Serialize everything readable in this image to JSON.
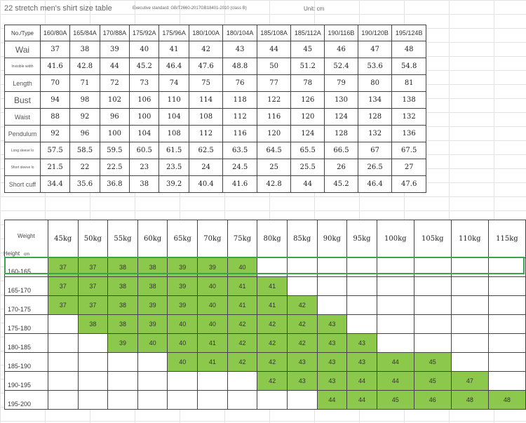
{
  "header": {
    "title": "22 stretch men's shirt size table",
    "standard": "Executive standard: GB/T2660-2017GB18401-2010 (class B)",
    "unit": "Unit: cm"
  },
  "size_table": {
    "corner": "No./Type",
    "columns": [
      "160/80A",
      "165/84A",
      "170/88A",
      "175/92A",
      "175/96A",
      "180/100A",
      "180/104A",
      "185/108A",
      "185/112A",
      "190/116B",
      "190/120B",
      "195/124B"
    ],
    "rows": [
      {
        "label": "Wai",
        "values": [
          "37",
          "38",
          "39",
          "40",
          "41",
          "42",
          "43",
          "44",
          "45",
          "46",
          "47",
          "48"
        ]
      },
      {
        "label": "Invisible width",
        "values": [
          "41.6",
          "42.8",
          "44",
          "45.2",
          "46.4",
          "47.6",
          "48.8",
          "50",
          "51.2",
          "52.4",
          "53.6",
          "54.8"
        ]
      },
      {
        "label": "Length",
        "values": [
          "70",
          "71",
          "72",
          "73",
          "74",
          "75",
          "76",
          "77",
          "78",
          "79",
          "80",
          "81"
        ]
      },
      {
        "label": "Bust",
        "values": [
          "94",
          "98",
          "102",
          "106",
          "110",
          "114",
          "118",
          "122",
          "126",
          "130",
          "134",
          "138"
        ]
      },
      {
        "label": "Waist",
        "values": [
          "88",
          "92",
          "96",
          "100",
          "104",
          "108",
          "112",
          "116",
          "120",
          "124",
          "128",
          "132"
        ]
      },
      {
        "label": "Pendulum",
        "values": [
          "92",
          "96",
          "100",
          "104",
          "108",
          "112",
          "116",
          "120",
          "124",
          "128",
          "132",
          "136"
        ]
      },
      {
        "label": "Long sleeve lo",
        "values": [
          "57.5",
          "58.5",
          "59.5",
          "60.5",
          "61.5",
          "62.5",
          "63.5",
          "64.5",
          "65.5",
          "66.5",
          "67",
          "67.5"
        ]
      },
      {
        "label": "Short sleeve lo",
        "values": [
          "21.5",
          "22",
          "22.5",
          "23",
          "23.5",
          "24",
          "24.5",
          "25",
          "25.5",
          "26",
          "26.5",
          "27"
        ]
      },
      {
        "label": "Short cuff",
        "values": [
          "34.4",
          "35.6",
          "36.8",
          "38",
          "39.2",
          "40.4",
          "41.6",
          "42.8",
          "44",
          "45.2",
          "46.4",
          "47.6"
        ]
      }
    ]
  },
  "fit_table": {
    "weight_label": "Weight",
    "height_label": "Height",
    "height_unit": "cm",
    "weights": [
      "45kg",
      "50kg",
      "55kg",
      "60kg",
      "65kg",
      "70kg",
      "75kg",
      "80kg",
      "85kg",
      "90kg",
      "95kg",
      "100kg",
      "105kg",
      "110kg",
      "115kg"
    ],
    "rows": [
      {
        "height": "160-165",
        "cells": [
          "37",
          "37",
          "38",
          "38",
          "39",
          "39",
          "40",
          "",
          "",
          "",
          "",
          "",
          "",
          "",
          ""
        ]
      },
      {
        "height": "165-170",
        "cells": [
          "37",
          "37",
          "38",
          "38",
          "39",
          "40",
          "41",
          "41",
          "",
          "",
          "",
          "",
          "",
          "",
          ""
        ]
      },
      {
        "height": "170-175",
        "cells": [
          "37",
          "37",
          "38",
          "39",
          "39",
          "40",
          "41",
          "41",
          "42",
          "",
          "",
          "",
          "",
          "",
          ""
        ]
      },
      {
        "height": "175-180",
        "cells": [
          "",
          "38",
          "38",
          "39",
          "40",
          "40",
          "42",
          "42",
          "42",
          "43",
          "",
          "",
          "",
          "",
          ""
        ]
      },
      {
        "height": "180-185",
        "cells": [
          "",
          "",
          "39",
          "40",
          "40",
          "41",
          "42",
          "42",
          "42",
          "43",
          "43",
          "",
          "",
          "",
          ""
        ]
      },
      {
        "height": "185-190",
        "cells": [
          "",
          "",
          "",
          "",
          "40",
          "41",
          "42",
          "42",
          "43",
          "43",
          "43",
          "44",
          "45",
          "",
          ""
        ]
      },
      {
        "height": "190-195",
        "cells": [
          "",
          "",
          "",
          "",
          "",
          "",
          "",
          "42",
          "43",
          "43",
          "44",
          "44",
          "45",
          "47",
          ""
        ]
      },
      {
        "height": "195-200",
        "cells": [
          "",
          "",
          "",
          "",
          "",
          "",
          "",
          "",
          "",
          "44",
          "44",
          "45",
          "46",
          "48",
          "48"
        ]
      }
    ],
    "highlight_color": "#8cc84b",
    "selection_color": "#3aa54a"
  }
}
